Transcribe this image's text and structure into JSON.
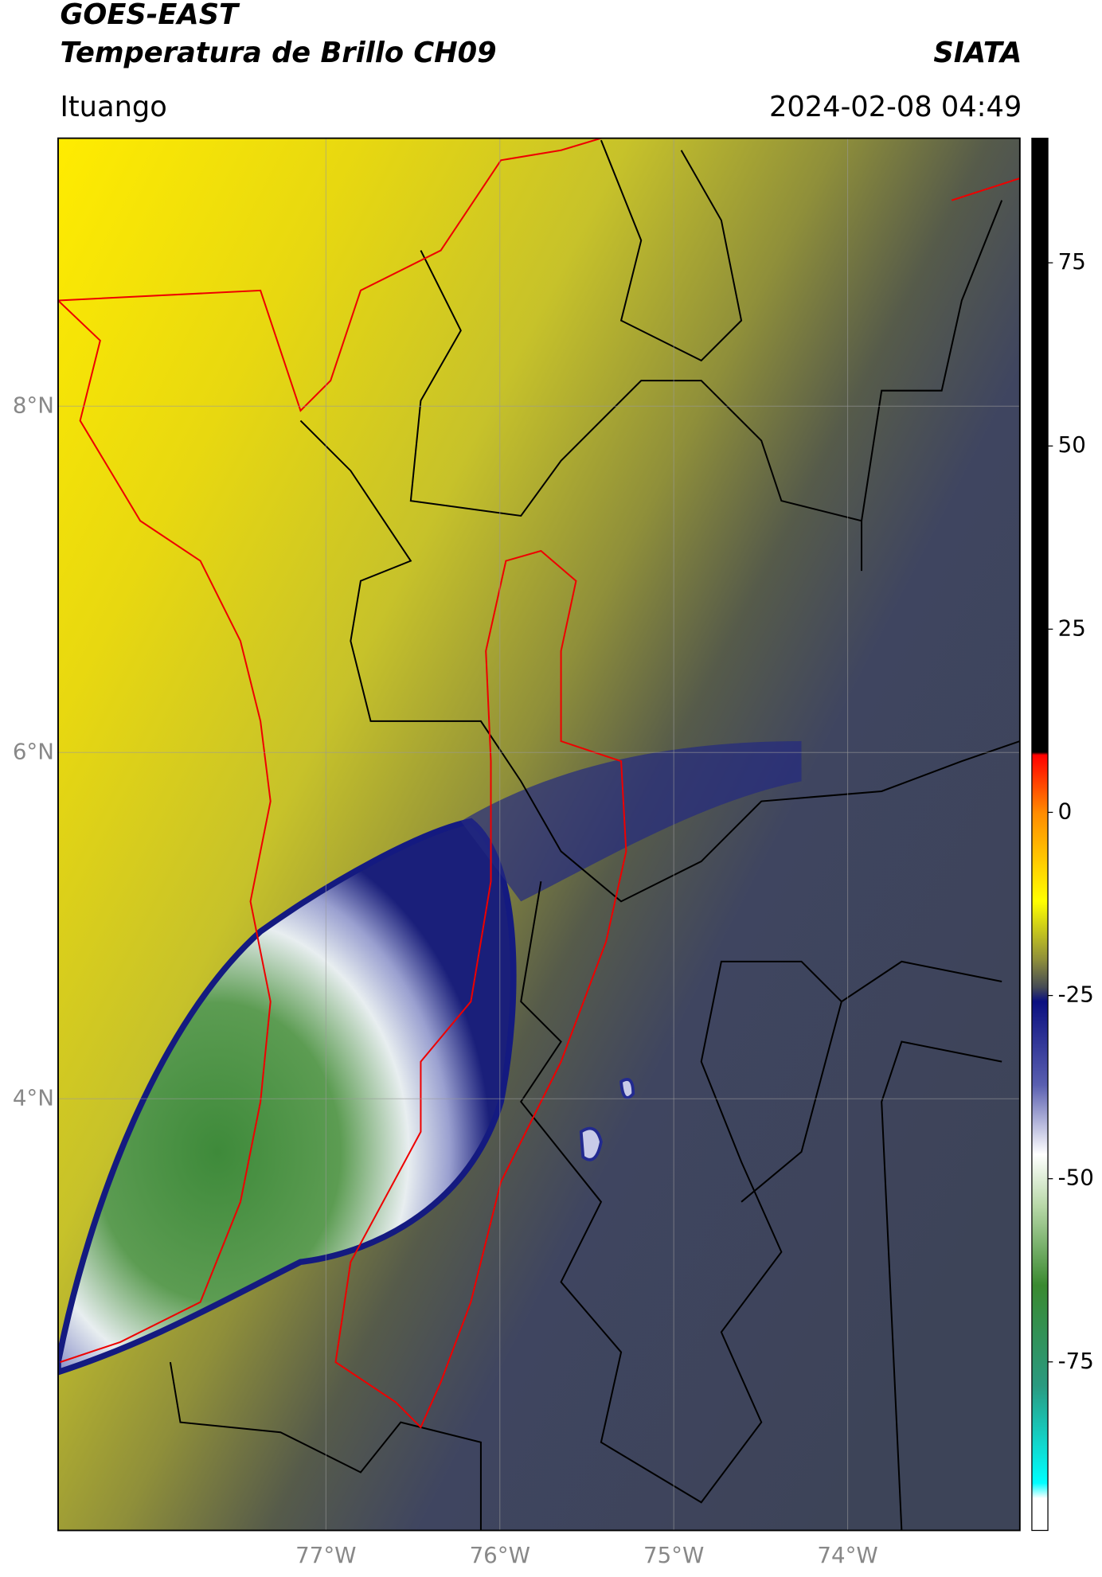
{
  "header": {
    "title": "GOES-EAST",
    "subtitle": "Temperatura de Brillo CH09",
    "brand": "SIATA",
    "region": "Ituango",
    "timestamp": "2024-02-08 04:49"
  },
  "chart_data": {
    "type": "map",
    "xlim": [
      -78.54,
      -73.01
    ],
    "ylim": [
      1.507,
      9.548
    ],
    "xticks": [
      {
        "value": -77,
        "label": "77°W"
      },
      {
        "value": -76,
        "label": "76°W"
      },
      {
        "value": -75,
        "label": "75°W"
      },
      {
        "value": -74,
        "label": "74°W"
      }
    ],
    "yticks": [
      {
        "value": 8,
        "label": "8°N"
      },
      {
        "value": 6,
        "label": "6°N"
      },
      {
        "value": 4,
        "label": "4°N"
      }
    ],
    "grid": true,
    "colorbar": {
      "lim": [
        -98,
        92
      ],
      "ticks": [
        75,
        50,
        25,
        0,
        -25,
        -50,
        -75
      ]
    }
  }
}
